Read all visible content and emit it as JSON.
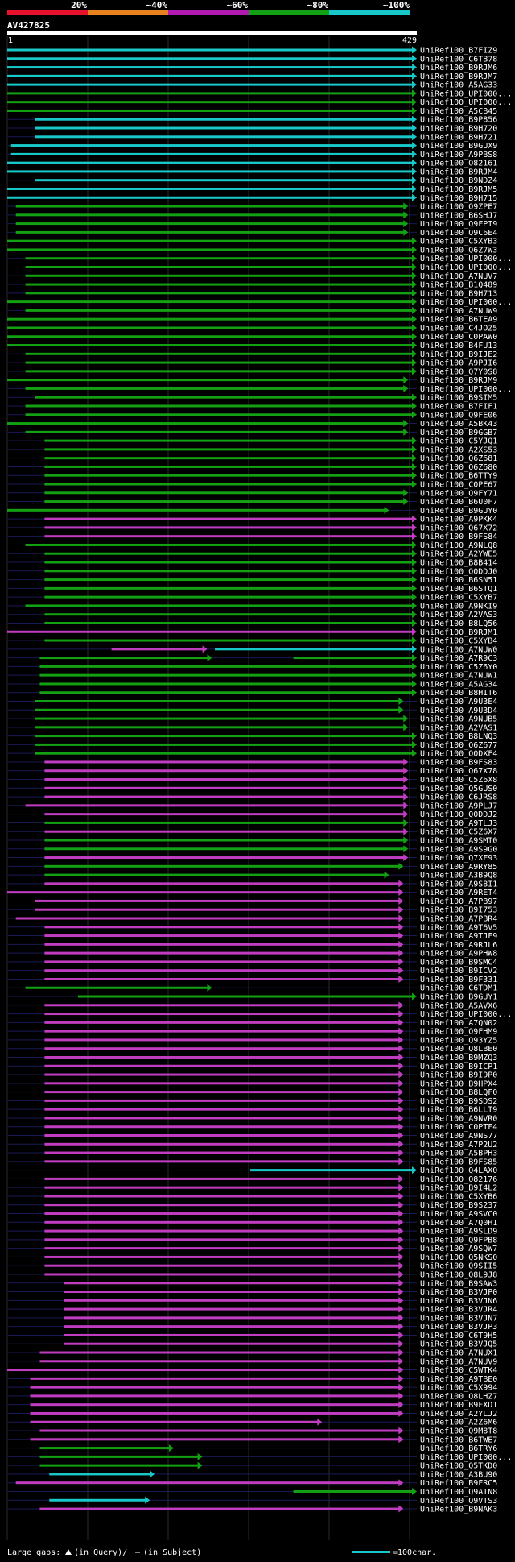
{
  "chart_data": {
    "type": "alignment-overview",
    "query_id": "AV427825",
    "query_start": "1",
    "query_end": "429",
    "query_length": 429,
    "identity_scale": {
      "labels": [
        "20%",
        "~40%",
        "~60%",
        "~80%",
        "~100%"
      ],
      "colors": [
        "#e8112d",
        "#e8821e",
        "#b21ab2",
        "#13a013",
        "#18c8c8"
      ]
    },
    "footer": {
      "gap_text": "Large gaps:",
      "gap_legend": "(in Query)/",
      "gap_legend2": "(in Subject)",
      "scale_text": "=100char."
    },
    "colors": {
      "cyan": "#18c8c8",
      "green": "#13a013",
      "magenta": "#c03cc0"
    },
    "hits": [
      {
        "id": "UniRef100_B7FIZ9",
        "c": "cyan",
        "s": 1,
        "e": 429
      },
      {
        "id": "UniRef100_C6TB78",
        "c": "cyan",
        "s": 1,
        "e": 429
      },
      {
        "id": "UniRef100_B9RJM6",
        "c": "cyan",
        "s": 1,
        "e": 429
      },
      {
        "id": "UniRef100_B9RJM7",
        "c": "cyan",
        "s": 1,
        "e": 429
      },
      {
        "id": "UniRef100_A5AG33",
        "c": "cyan",
        "s": 1,
        "e": 429
      },
      {
        "id": "UniRef100_UPI000...",
        "c": "green",
        "s": 1,
        "e": 429
      },
      {
        "id": "UniRef100_UPI000...",
        "c": "green",
        "s": 1,
        "e": 429
      },
      {
        "id": "UniRef100_A5CB45",
        "c": "green",
        "s": 1,
        "e": 429
      },
      {
        "id": "UniRef100_B9P856",
        "c": "cyan",
        "s": 30,
        "e": 429
      },
      {
        "id": "UniRef100_B9H720",
        "c": "cyan",
        "s": 30,
        "e": 429
      },
      {
        "id": "UniRef100_B9H721",
        "c": "cyan",
        "s": 30,
        "e": 429
      },
      {
        "id": "UniRef100_B9GUX9",
        "c": "cyan",
        "s": 5,
        "e": 429
      },
      {
        "id": "UniRef100_A9PBS8",
        "c": "cyan",
        "s": 5,
        "e": 429
      },
      {
        "id": "UniRef100_O82161",
        "c": "cyan",
        "s": 1,
        "e": 429
      },
      {
        "id": "UniRef100_B9RJM4",
        "c": "cyan",
        "s": 1,
        "e": 429
      },
      {
        "id": "UniRef100_B9NDZ4",
        "c": "cyan",
        "s": 30,
        "e": 429
      },
      {
        "id": "UniRef100_B9RJM5",
        "c": "cyan",
        "s": 1,
        "e": 429
      },
      {
        "id": "UniRef100_B9H715",
        "c": "cyan",
        "s": 1,
        "e": 429
      },
      {
        "id": "UniRef100_Q9ZPE7",
        "c": "green",
        "s": 10,
        "e": 420
      },
      {
        "id": "UniRef100_B6SHJ7",
        "c": "green",
        "s": 10,
        "e": 420
      },
      {
        "id": "UniRef100_Q9FPI9",
        "c": "green",
        "s": 10,
        "e": 420
      },
      {
        "id": "UniRef100_Q9C6E4",
        "c": "green",
        "s": 10,
        "e": 420
      },
      {
        "id": "UniRef100_C5XYB3",
        "c": "green",
        "s": 1,
        "e": 429
      },
      {
        "id": "UniRef100_Q6Z7W3",
        "c": "green",
        "s": 1,
        "e": 429
      },
      {
        "id": "UniRef100_UPI000...",
        "c": "green",
        "s": 20,
        "e": 429
      },
      {
        "id": "UniRef100_UPI000...",
        "c": "green",
        "s": 20,
        "e": 429
      },
      {
        "id": "UniRef100_A7NUV7",
        "c": "green",
        "s": 20,
        "e": 429
      },
      {
        "id": "UniRef100_B1Q489",
        "c": "green",
        "s": 20,
        "e": 429
      },
      {
        "id": "UniRef100_B9H713",
        "c": "green",
        "s": 20,
        "e": 429
      },
      {
        "id": "UniRef100_UPI000...",
        "c": "green",
        "s": 1,
        "e": 429
      },
      {
        "id": "UniRef100_A7NUW9",
        "c": "green",
        "s": 20,
        "e": 429
      },
      {
        "id": "UniRef100_B6TEA9",
        "c": "green",
        "s": 1,
        "e": 429
      },
      {
        "id": "UniRef100_C4JOZ5",
        "c": "green",
        "s": 1,
        "e": 429
      },
      {
        "id": "UniRef100_C0PAW0",
        "c": "green",
        "s": 1,
        "e": 429
      },
      {
        "id": "UniRef100_B4FU13",
        "c": "green",
        "s": 1,
        "e": 429
      },
      {
        "id": "UniRef100_B9IJE2",
        "c": "green",
        "s": 20,
        "e": 429
      },
      {
        "id": "UniRef100_A9PJI6",
        "c": "green",
        "s": 20,
        "e": 429
      },
      {
        "id": "UniRef100_Q7Y0S8",
        "c": "green",
        "s": 20,
        "e": 429
      },
      {
        "id": "UniRef100_B9RJM9",
        "c": "green",
        "s": 1,
        "e": 420
      },
      {
        "id": "UniRef100_UPI000...",
        "c": "green",
        "s": 20,
        "e": 420
      },
      {
        "id": "UniRef100_B9SIM5",
        "c": "green",
        "s": 30,
        "e": 429
      },
      {
        "id": "UniRef100_B7FIF1",
        "c": "green",
        "s": 20,
        "e": 429
      },
      {
        "id": "UniRef100_Q9FE06",
        "c": "green",
        "s": 20,
        "e": 429
      },
      {
        "id": "UniRef100_A5BK43",
        "c": "green",
        "s": 1,
        "e": 420
      },
      {
        "id": "UniRef100_B9GGB7",
        "c": "green",
        "s": 20,
        "e": 420
      },
      {
        "id": "UniRef100_C5YJQ1",
        "c": "green",
        "s": 40,
        "e": 429
      },
      {
        "id": "UniRef100_A2XS53",
        "c": "green",
        "s": 40,
        "e": 429
      },
      {
        "id": "UniRef100_Q6Z681",
        "c": "green",
        "s": 40,
        "e": 429
      },
      {
        "id": "UniRef100_Q6Z680",
        "c": "green",
        "s": 40,
        "e": 429
      },
      {
        "id": "UniRef100_B6TTY9",
        "c": "green",
        "s": 40,
        "e": 429
      },
      {
        "id": "UniRef100_C0PE67",
        "c": "green",
        "s": 40,
        "e": 429
      },
      {
        "id": "UniRef100_Q9FY71",
        "c": "green",
        "s": 40,
        "e": 420
      },
      {
        "id": "UniRef100_B6U0F7",
        "c": "green",
        "s": 40,
        "e": 420
      },
      {
        "id": "UniRef100_B9GUY0",
        "c": "green",
        "s": 1,
        "e": 400
      },
      {
        "id": "UniRef100_A9PKK4",
        "c": "magenta",
        "s": 40,
        "e": 429
      },
      {
        "id": "UniRef100_Q67X72",
        "c": "magenta",
        "s": 40,
        "e": 429
      },
      {
        "id": "UniRef100_B9FS84",
        "c": "magenta",
        "s": 40,
        "e": 429
      },
      {
        "id": "UniRef100_A9NLQ8",
        "c": "green",
        "s": 20,
        "e": 429
      },
      {
        "id": "UniRef100_A2YWE5",
        "c": "green",
        "s": 40,
        "e": 429
      },
      {
        "id": "UniRef100_B8B414",
        "c": "green",
        "s": 40,
        "e": 429
      },
      {
        "id": "UniRef100_Q0DDJ0",
        "c": "green",
        "s": 40,
        "e": 429
      },
      {
        "id": "UniRef100_B6SN51",
        "c": "green",
        "s": 40,
        "e": 429
      },
      {
        "id": "UniRef100_B6STQ1",
        "c": "green",
        "s": 40,
        "e": 429
      },
      {
        "id": "UniRef100_C5XYB7",
        "c": "green",
        "s": 40,
        "e": 429
      },
      {
        "id": "UniRef100_A9NKI9",
        "c": "green",
        "s": 20,
        "e": 429
      },
      {
        "id": "UniRef100_A2VAS3",
        "c": "green",
        "s": 40,
        "e": 429
      },
      {
        "id": "UniRef100_B8LQ56",
        "c": "green",
        "s": 40,
        "e": 429
      },
      {
        "id": "UniRef100_B9RJM1",
        "c": "magenta",
        "s": 1,
        "e": 429
      },
      {
        "id": "UniRef100_C5XYB4",
        "c": "green",
        "s": 40,
        "e": 429
      },
      {
        "id": "UniRef100_A7NUW0",
        "c": "magenta",
        "s": 110,
        "e": 210,
        "extra": {
          "c": "cyan",
          "s": 218,
          "e": 429
        }
      },
      {
        "id": "UniRef100_A7R9C3",
        "c": "green",
        "s": 35,
        "e": 215,
        "extra": {
          "c": "green",
          "s": 300,
          "e": 429
        }
      },
      {
        "id": "UniRef100_C5Z6Y0",
        "c": "green",
        "s": 35,
        "e": 429
      },
      {
        "id": "UniRef100_A7NUW1",
        "c": "green",
        "s": 35,
        "e": 429
      },
      {
        "id": "UniRef100_A5AG34",
        "c": "green",
        "s": 35,
        "e": 429
      },
      {
        "id": "UniRef100_B8HIT6",
        "c": "green",
        "s": 35,
        "e": 429
      },
      {
        "id": "UniRef100_A9U3E4",
        "c": "green",
        "s": 30,
        "e": 415
      },
      {
        "id": "UniRef100_A9U3D4",
        "c": "green",
        "s": 30,
        "e": 415
      },
      {
        "id": "UniRef100_A9NUB5",
        "c": "green",
        "s": 30,
        "e": 420
      },
      {
        "id": "UniRef100_A2VAS1",
        "c": "green",
        "s": 30,
        "e": 420
      },
      {
        "id": "UniRef100_B8LNQ3",
        "c": "green",
        "s": 30,
        "e": 429
      },
      {
        "id": "UniRef100_Q6Z677",
        "c": "green",
        "s": 30,
        "e": 429
      },
      {
        "id": "UniRef100_Q0DXF4",
        "c": "green",
        "s": 30,
        "e": 429
      },
      {
        "id": "UniRef100_B9FS83",
        "c": "magenta",
        "s": 40,
        "e": 420
      },
      {
        "id": "UniRef100_Q67X78",
        "c": "magenta",
        "s": 40,
        "e": 420
      },
      {
        "id": "UniRef100_C5Z6X8",
        "c": "magenta",
        "s": 40,
        "e": 420
      },
      {
        "id": "UniRef100_Q5GUS0",
        "c": "magenta",
        "s": 40,
        "e": 420
      },
      {
        "id": "UniRef100_C6JRS8",
        "c": "magenta",
        "s": 40,
        "e": 420
      },
      {
        "id": "UniRef100_A9PLJ7",
        "c": "magenta",
        "s": 20,
        "e": 420
      },
      {
        "id": "UniRef100_Q0DDJ2",
        "c": "magenta",
        "s": 40,
        "e": 420
      },
      {
        "id": "UniRef100_A9TLJ3",
        "c": "green",
        "s": 40,
        "e": 420
      },
      {
        "id": "UniRef100_C5Z6X7",
        "c": "magenta",
        "s": 40,
        "e": 420
      },
      {
        "id": "UniRef100_A9SMT0",
        "c": "green",
        "s": 40,
        "e": 420
      },
      {
        "id": "UniRef100_A9S9G0",
        "c": "green",
        "s": 40,
        "e": 420
      },
      {
        "id": "UniRef100_Q7XF93",
        "c": "magenta",
        "s": 40,
        "e": 420
      },
      {
        "id": "UniRef100_A9RY85",
        "c": "green",
        "s": 40,
        "e": 415
      },
      {
        "id": "UniRef100_A3B9Q8",
        "c": "green",
        "s": 40,
        "e": 400
      },
      {
        "id": "UniRef100_A9S8I1",
        "c": "magenta",
        "s": 40,
        "e": 415
      },
      {
        "id": "UniRef100_A9RET4",
        "c": "magenta",
        "s": 1,
        "e": 415
      },
      {
        "id": "UniRef100_A7PB97",
        "c": "magenta",
        "s": 30,
        "e": 415
      },
      {
        "id": "UniRef100_B9I753",
        "c": "magenta",
        "s": 30,
        "e": 415
      },
      {
        "id": "UniRef100_A7PBR4",
        "c": "magenta",
        "s": 10,
        "e": 415
      },
      {
        "id": "UniRef100_A9T6V5",
        "c": "magenta",
        "s": 40,
        "e": 415
      },
      {
        "id": "UniRef100_A9TJF9",
        "c": "magenta",
        "s": 40,
        "e": 415
      },
      {
        "id": "UniRef100_A9RJL6",
        "c": "magenta",
        "s": 40,
        "e": 415
      },
      {
        "id": "UniRef100_A9PHW8",
        "c": "magenta",
        "s": 40,
        "e": 415
      },
      {
        "id": "UniRef100_B9SMC4",
        "c": "magenta",
        "s": 40,
        "e": 415
      },
      {
        "id": "UniRef100_B9ICV2",
        "c": "magenta",
        "s": 40,
        "e": 415
      },
      {
        "id": "UniRef100_B9F331",
        "c": "magenta",
        "s": 40,
        "e": 415
      },
      {
        "id": "UniRef100_C6TDM1",
        "c": "green",
        "s": 20,
        "e": 215
      },
      {
        "id": "UniRef100_B9GUY1",
        "c": "green",
        "s": 75,
        "e": 429
      },
      {
        "id": "UniRef100_A5AVX6",
        "c": "magenta",
        "s": 40,
        "e": 415
      },
      {
        "id": "UniRef100_UPI000...",
        "c": "magenta",
        "s": 40,
        "e": 415
      },
      {
        "id": "UniRef100_A7QN02",
        "c": "magenta",
        "s": 40,
        "e": 415
      },
      {
        "id": "UniRef100_Q9FHM9",
        "c": "magenta",
        "s": 40,
        "e": 415
      },
      {
        "id": "UniRef100_Q93YZ5",
        "c": "magenta",
        "s": 40,
        "e": 415
      },
      {
        "id": "UniRef100_Q8LBE0",
        "c": "magenta",
        "s": 40,
        "e": 415
      },
      {
        "id": "UniRef100_B9MZQ3",
        "c": "magenta",
        "s": 40,
        "e": 415
      },
      {
        "id": "UniRef100_B9ICP1",
        "c": "magenta",
        "s": 40,
        "e": 415
      },
      {
        "id": "UniRef100_B9I9P0",
        "c": "magenta",
        "s": 40,
        "e": 415
      },
      {
        "id": "UniRef100_B9HPX4",
        "c": "magenta",
        "s": 40,
        "e": 415
      },
      {
        "id": "UniRef100_B8LQF0",
        "c": "magenta",
        "s": 40,
        "e": 415
      },
      {
        "id": "UniRef100_B9SDS2",
        "c": "magenta",
        "s": 40,
        "e": 415
      },
      {
        "id": "UniRef100_B6LLT9",
        "c": "magenta",
        "s": 40,
        "e": 415
      },
      {
        "id": "UniRef100_A9NVR0",
        "c": "magenta",
        "s": 40,
        "e": 415
      },
      {
        "id": "UniRef100_C0PTF4",
        "c": "magenta",
        "s": 40,
        "e": 415
      },
      {
        "id": "UniRef100_A9NS77",
        "c": "magenta",
        "s": 40,
        "e": 415
      },
      {
        "id": "UniRef100_A7P2U2",
        "c": "magenta",
        "s": 40,
        "e": 415
      },
      {
        "id": "UniRef100_A5BPH3",
        "c": "magenta",
        "s": 40,
        "e": 415
      },
      {
        "id": "UniRef100_B9FS85",
        "c": "magenta",
        "s": 40,
        "e": 415
      },
      {
        "id": "UniRef100_Q4LAX0",
        "c": "cyan",
        "s": 255,
        "e": 429
      },
      {
        "id": "UniRef100_O82176",
        "c": "magenta",
        "s": 40,
        "e": 415
      },
      {
        "id": "UniRef100_B9I4L2",
        "c": "magenta",
        "s": 40,
        "e": 415
      },
      {
        "id": "UniRef100_C5XYB6",
        "c": "magenta",
        "s": 40,
        "e": 415
      },
      {
        "id": "UniRef100_B9S237",
        "c": "magenta",
        "s": 40,
        "e": 415
      },
      {
        "id": "UniRef100_A9SVC0",
        "c": "magenta",
        "s": 40,
        "e": 415
      },
      {
        "id": "UniRef100_A7Q0H1",
        "c": "magenta",
        "s": 40,
        "e": 415
      },
      {
        "id": "UniRef100_A9SLD9",
        "c": "magenta",
        "s": 40,
        "e": 415
      },
      {
        "id": "UniRef100_Q9FPB8",
        "c": "magenta",
        "s": 40,
        "e": 415
      },
      {
        "id": "UniRef100_A9SQW7",
        "c": "magenta",
        "s": 40,
        "e": 415
      },
      {
        "id": "UniRef100_Q5NKS0",
        "c": "magenta",
        "s": 40,
        "e": 415
      },
      {
        "id": "UniRef100_Q9SII5",
        "c": "magenta",
        "s": 40,
        "e": 415
      },
      {
        "id": "UniRef100_Q8L9J8",
        "c": "magenta",
        "s": 40,
        "e": 415
      },
      {
        "id": "UniRef100_B9SAW3",
        "c": "magenta",
        "s": 60,
        "e": 415
      },
      {
        "id": "UniRef100_B3VJP0",
        "c": "magenta",
        "s": 60,
        "e": 415
      },
      {
        "id": "UniRef100_B3VJN6",
        "c": "magenta",
        "s": 60,
        "e": 415
      },
      {
        "id": "UniRef100_B3VJR4",
        "c": "magenta",
        "s": 60,
        "e": 415
      },
      {
        "id": "UniRef100_B3VJN7",
        "c": "magenta",
        "s": 60,
        "e": 415
      },
      {
        "id": "UniRef100_B3VJP3",
        "c": "magenta",
        "s": 60,
        "e": 415
      },
      {
        "id": "UniRef100_C6T9H5",
        "c": "magenta",
        "s": 60,
        "e": 415
      },
      {
        "id": "UniRef100_B3VJQ5",
        "c": "magenta",
        "s": 60,
        "e": 415
      },
      {
        "id": "UniRef100_A7NUX1",
        "c": "magenta",
        "s": 35,
        "e": 415
      },
      {
        "id": "UniRef100_A7NUV9",
        "c": "magenta",
        "s": 35,
        "e": 415
      },
      {
        "id": "UniRef100_C5WTK4",
        "c": "magenta",
        "s": 1,
        "e": 415
      },
      {
        "id": "UniRef100_A9TBE0",
        "c": "magenta",
        "s": 25,
        "e": 415
      },
      {
        "id": "UniRef100_C5X994",
        "c": "magenta",
        "s": 25,
        "e": 415
      },
      {
        "id": "UniRef100_Q8LHZ7",
        "c": "magenta",
        "s": 25,
        "e": 415
      },
      {
        "id": "UniRef100_B9FXD1",
        "c": "magenta",
        "s": 25,
        "e": 415
      },
      {
        "id": "UniRef100_A2YLJ2",
        "c": "magenta",
        "s": 25,
        "e": 415
      },
      {
        "id": "UniRef100_A2Z6M6",
        "c": "magenta",
        "s": 25,
        "e": 330
      },
      {
        "id": "UniRef100_Q9M8T8",
        "c": "magenta",
        "s": 35,
        "e": 415
      },
      {
        "id": "UniRef100_B6TWE7",
        "c": "magenta",
        "s": 25,
        "e": 415
      },
      {
        "id": "UniRef100_B6TRY6",
        "c": "green",
        "s": 35,
        "e": 175
      },
      {
        "id": "UniRef100_UPI000...",
        "c": "green",
        "s": 35,
        "e": 205
      },
      {
        "id": "UniRef100_Q5TKD0",
        "c": "green",
        "s": 35,
        "e": 205
      },
      {
        "id": "UniRef100_A3BU90",
        "c": "cyan",
        "s": 45,
        "e": 155
      },
      {
        "id": "UniRef100_B9FRC5",
        "c": "magenta",
        "s": 10,
        "e": 415
      },
      {
        "id": "UniRef100_Q9ATN8",
        "c": "green",
        "s": 300,
        "e": 429
      },
      {
        "id": "UniRef100_Q9VTS3",
        "c": "cyan",
        "s": 45,
        "e": 150
      },
      {
        "id": "UniRef100_B9NAK3",
        "c": "magenta",
        "s": 35,
        "e": 415
      }
    ]
  }
}
